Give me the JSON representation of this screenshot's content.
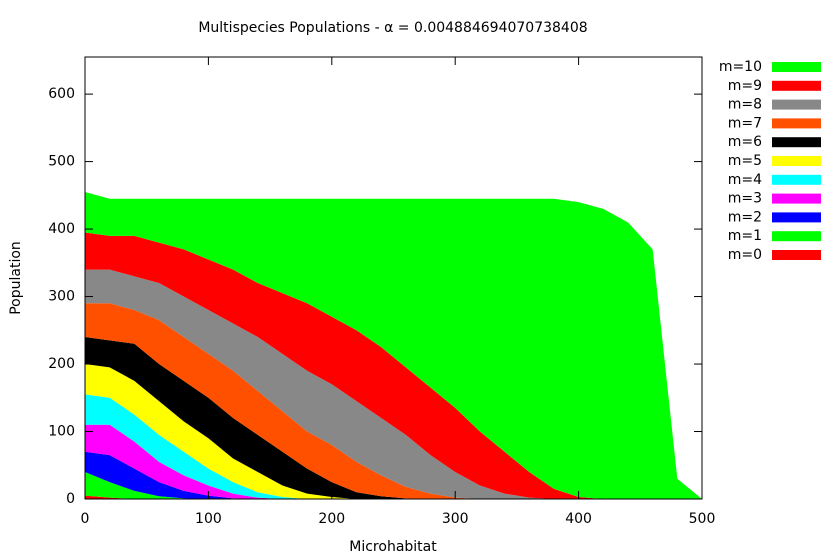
{
  "chart_data": {
    "type": "stacked_area",
    "title": "Multispecies Populations - α = 0.004884694070738408",
    "x_label": "Microhabitat",
    "y_label": "Population",
    "x": [
      0,
      20,
      40,
      60,
      80,
      100,
      120,
      140,
      160,
      180,
      200,
      220,
      240,
      260,
      280,
      300,
      320,
      340,
      360,
      380,
      400,
      420,
      440,
      460,
      480,
      500
    ],
    "series": [
      {
        "name": "m=10",
        "color": "#00ff00",
        "values": [
          60,
          55,
          55,
          65,
          75,
          90,
          105,
          125,
          140,
          155,
          175,
          195,
          220,
          250,
          280,
          310,
          345,
          375,
          405,
          430,
          437,
          430,
          410,
          370,
          30,
          0
        ]
      },
      {
        "name": "m=9",
        "color": "#ff0000",
        "values": [
          55,
          50,
          60,
          60,
          70,
          75,
          80,
          80,
          90,
          100,
          100,
          105,
          105,
          100,
          100,
          95,
          80,
          62,
          38,
          15,
          3,
          0,
          0,
          0,
          0,
          0
        ]
      },
      {
        "name": "m=8",
        "color": "#888888",
        "values": [
          50,
          50,
          50,
          55,
          60,
          65,
          70,
          80,
          85,
          90,
          90,
          90,
          85,
          77,
          57,
          38,
          20,
          8,
          2,
          0,
          0,
          0,
          0,
          0,
          0,
          0
        ]
      },
      {
        "name": "m=7",
        "color": "#ff5000",
        "values": [
          50,
          55,
          50,
          65,
          65,
          65,
          70,
          65,
          60,
          55,
          55,
          45,
          31,
          17,
          8,
          2,
          0,
          0,
          0,
          0,
          0,
          0,
          0,
          0,
          0,
          0
        ]
      },
      {
        "name": "m=6",
        "color": "#000000",
        "values": [
          40,
          40,
          55,
          55,
          60,
          60,
          60,
          55,
          50,
          37,
          22,
          10,
          4,
          1,
          0,
          0,
          0,
          0,
          0,
          0,
          0,
          0,
          0,
          0,
          0,
          0
        ]
      },
      {
        "name": "m=5",
        "color": "#ffff00",
        "values": [
          45,
          45,
          50,
          50,
          45,
          45,
          35,
          30,
          17,
          8,
          3,
          0,
          0,
          0,
          0,
          0,
          0,
          0,
          0,
          0,
          0,
          0,
          0,
          0,
          0,
          0
        ]
      },
      {
        "name": "m=4",
        "color": "#00ffff",
        "values": [
          45,
          40,
          40,
          40,
          35,
          25,
          17,
          8,
          3,
          0,
          0,
          0,
          0,
          0,
          0,
          0,
          0,
          0,
          0,
          0,
          0,
          0,
          0,
          0,
          0,
          0
        ]
      },
      {
        "name": "m=3",
        "color": "#ff00ff",
        "values": [
          40,
          45,
          40,
          30,
          23,
          15,
          7,
          2,
          0,
          0,
          0,
          0,
          0,
          0,
          0,
          0,
          0,
          0,
          0,
          0,
          0,
          0,
          0,
          0,
          0,
          0
        ]
      },
      {
        "name": "m=2",
        "color": "#0000ff",
        "values": [
          30,
          40,
          33,
          21,
          11,
          5,
          1,
          0,
          0,
          0,
          0,
          0,
          0,
          0,
          0,
          0,
          0,
          0,
          0,
          0,
          0,
          0,
          0,
          0,
          0,
          0
        ]
      },
      {
        "name": "m=1",
        "color": "#00ff00",
        "values": [
          35,
          23,
          12,
          4,
          1,
          0,
          0,
          0,
          0,
          0,
          0,
          0,
          0,
          0,
          0,
          0,
          0,
          0,
          0,
          0,
          0,
          0,
          0,
          0,
          0,
          0
        ]
      },
      {
        "name": "m=0",
        "color": "#ff0000",
        "values": [
          5,
          2,
          0,
          0,
          0,
          0,
          0,
          0,
          0,
          0,
          0,
          0,
          0,
          0,
          0,
          0,
          0,
          0,
          0,
          0,
          0,
          0,
          0,
          0,
          0,
          0
        ]
      }
    ],
    "xlim": [
      0,
      500
    ],
    "ylim": [
      0,
      655
    ],
    "xticks": [
      0,
      100,
      200,
      300,
      400,
      500
    ],
    "yticks": [
      0,
      100,
      200,
      300,
      400,
      500,
      600
    ]
  }
}
